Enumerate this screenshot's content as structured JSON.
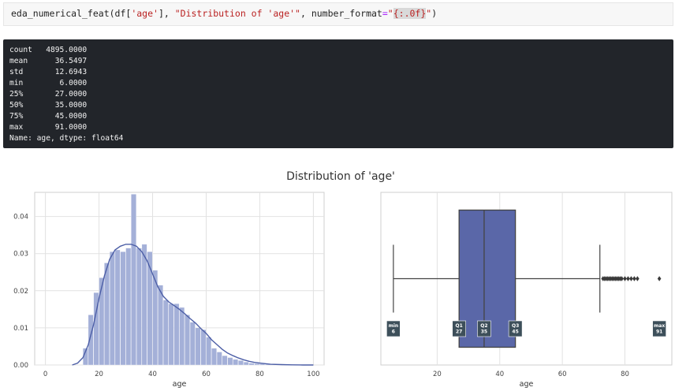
{
  "code": {
    "func": "eda_numerical_feat(df[",
    "key": "'age'",
    "mid": "], ",
    "title_arg": "\"Distribution of 'age'\"",
    "sep": ", number_format",
    "eq": "=",
    "quote_open": "\"",
    "fmt": "{:.0f}",
    "quote_close": "\"",
    "close": ")"
  },
  "output": {
    "lines": [
      "count   4895.0000",
      "mean      36.5497",
      "std       12.6943",
      "min        6.0000",
      "25%       27.0000",
      "50%       35.0000",
      "75%       45.0000",
      "max       91.0000",
      "Name: age, dtype: float64"
    ]
  },
  "figure": {
    "suptitle": "Distribution of 'age'"
  },
  "colors": {
    "hist": "#a4b0d8",
    "kde": "#4c5ea6",
    "box": "#5a67a8",
    "badge": "#3d4f5a"
  },
  "chart_data": [
    {
      "type": "bar",
      "subtype": "histogram-with-kde",
      "xlabel": "age",
      "xlim": [
        -4,
        104
      ],
      "ylim": [
        0,
        0.0465
      ],
      "xticks": [
        "0",
        "20",
        "40",
        "60",
        "80",
        "100"
      ],
      "yticks": [
        "0.00",
        "0.01",
        "0.02",
        "0.03",
        "0.04"
      ],
      "grid": true,
      "bin_edges": [
        6,
        8,
        10,
        12,
        14,
        16,
        18,
        20,
        22,
        24,
        26,
        28,
        30,
        32,
        34,
        36,
        38,
        40,
        42,
        44,
        46,
        48,
        50,
        52,
        54,
        56,
        58,
        60,
        62,
        64,
        66,
        68,
        70,
        72,
        74,
        76,
        78,
        80,
        82,
        84,
        86,
        88,
        90,
        92
      ],
      "density": [
        0.0,
        0.0,
        0.0,
        0.0,
        0.0045,
        0.0135,
        0.0195,
        0.0235,
        0.0275,
        0.0305,
        0.031,
        0.0305,
        0.0315,
        0.046,
        0.0315,
        0.0325,
        0.0305,
        0.0255,
        0.0215,
        0.0175,
        0.0165,
        0.0165,
        0.0155,
        0.0135,
        0.0115,
        0.01,
        0.0095,
        0.0075,
        0.0045,
        0.0035,
        0.0025,
        0.002,
        0.0015,
        0.0012,
        0.0008,
        0.0005,
        0.0004,
        0.0003,
        0.0002,
        0.0001,
        0.0001,
        0.0,
        0.0001
      ],
      "kde": {
        "x": [
          10,
          12,
          14,
          16,
          18,
          20,
          22,
          24,
          26,
          28,
          30,
          32,
          34,
          36,
          38,
          40,
          42,
          44,
          46,
          48,
          50,
          52,
          54,
          56,
          58,
          60,
          62,
          64,
          66,
          68,
          70,
          72,
          74,
          76,
          78,
          80,
          84,
          88,
          92,
          96,
          100
        ],
        "y": [
          0.0,
          0.0005,
          0.002,
          0.0055,
          0.011,
          0.018,
          0.024,
          0.0285,
          0.031,
          0.032,
          0.0325,
          0.0325,
          0.032,
          0.0305,
          0.028,
          0.0245,
          0.021,
          0.0185,
          0.017,
          0.016,
          0.015,
          0.0138,
          0.0125,
          0.0113,
          0.0098,
          0.0085,
          0.0068,
          0.0055,
          0.0042,
          0.0032,
          0.0025,
          0.0019,
          0.0014,
          0.001,
          0.0007,
          0.0005,
          0.0002,
          0.0001,
          5e-05,
          0.0,
          0.0
        ]
      }
    },
    {
      "type": "box",
      "xlabel": "age",
      "xlim": [
        2,
        95
      ],
      "xticks": [
        "20",
        "40",
        "60",
        "80"
      ],
      "grid": true,
      "min": 6,
      "q1": 27,
      "median": 35,
      "q3": 45,
      "max": 91,
      "whisker_low": 6,
      "whisker_high": 72,
      "outliers": [
        73,
        73.5,
        74,
        74.5,
        75,
        75.5,
        76,
        76.5,
        77,
        77.5,
        78,
        78.5,
        79,
        80,
        81,
        82,
        83,
        84,
        91
      ],
      "badges": [
        {
          "label": "min",
          "value": "6",
          "at": 6
        },
        {
          "label": "Q1",
          "value": "27",
          "at": 27
        },
        {
          "label": "Q2",
          "value": "35",
          "at": 35
        },
        {
          "label": "Q3",
          "value": "45",
          "at": 45
        },
        {
          "label": "max",
          "value": "91",
          "at": 91
        }
      ]
    }
  ]
}
